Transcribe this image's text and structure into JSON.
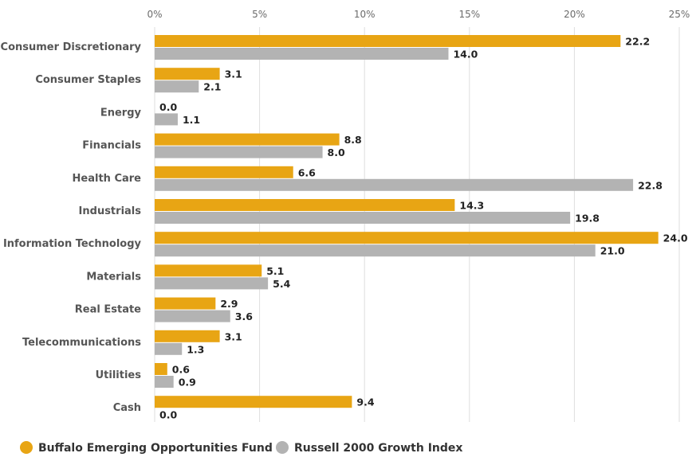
{
  "chart_data": {
    "type": "bar",
    "orientation": "horizontal",
    "categories": [
      "Consumer Discretionary",
      "Consumer Staples",
      "Energy",
      "Financials",
      "Health Care",
      "Industrials",
      "Information Technology",
      "Materials",
      "Real Estate",
      "Telecommunications",
      "Utilities",
      "Cash"
    ],
    "series": [
      {
        "name": "Buffalo Emerging Opportunities Fund",
        "color": "#e8a514",
        "values": [
          22.2,
          3.1,
          0.0,
          8.8,
          6.6,
          14.3,
          24.0,
          5.1,
          2.9,
          3.1,
          0.6,
          9.4
        ],
        "labels": [
          "22.2",
          "3.1",
          "0.0",
          "8.8",
          "6.6",
          "14.3",
          "24.0",
          "5.1",
          "2.9",
          "3.1",
          "0.6",
          "9.4"
        ]
      },
      {
        "name": "Russell 2000 Growth Index",
        "color": "#b3b3b3",
        "values": [
          14.0,
          2.1,
          1.1,
          8.0,
          22.8,
          19.8,
          21.0,
          5.4,
          3.6,
          1.3,
          0.9,
          0.0
        ],
        "labels": [
          "14.0",
          "2.1",
          "1.1",
          "8.0",
          "22.8",
          "19.8",
          "21.0",
          "5.4",
          "3.6",
          "1.3",
          "0.9",
          "0.0"
        ]
      }
    ],
    "xlim": [
      0,
      25
    ],
    "ticks": [
      0,
      5,
      10,
      15,
      20,
      25
    ],
    "tick_labels": [
      "0%",
      "5%",
      "10%",
      "15%",
      "20%",
      "25%"
    ],
    "axis_position": "top",
    "grid": true,
    "legend_position": "bottom-left",
    "title": "",
    "xlabel": "",
    "ylabel": ""
  }
}
